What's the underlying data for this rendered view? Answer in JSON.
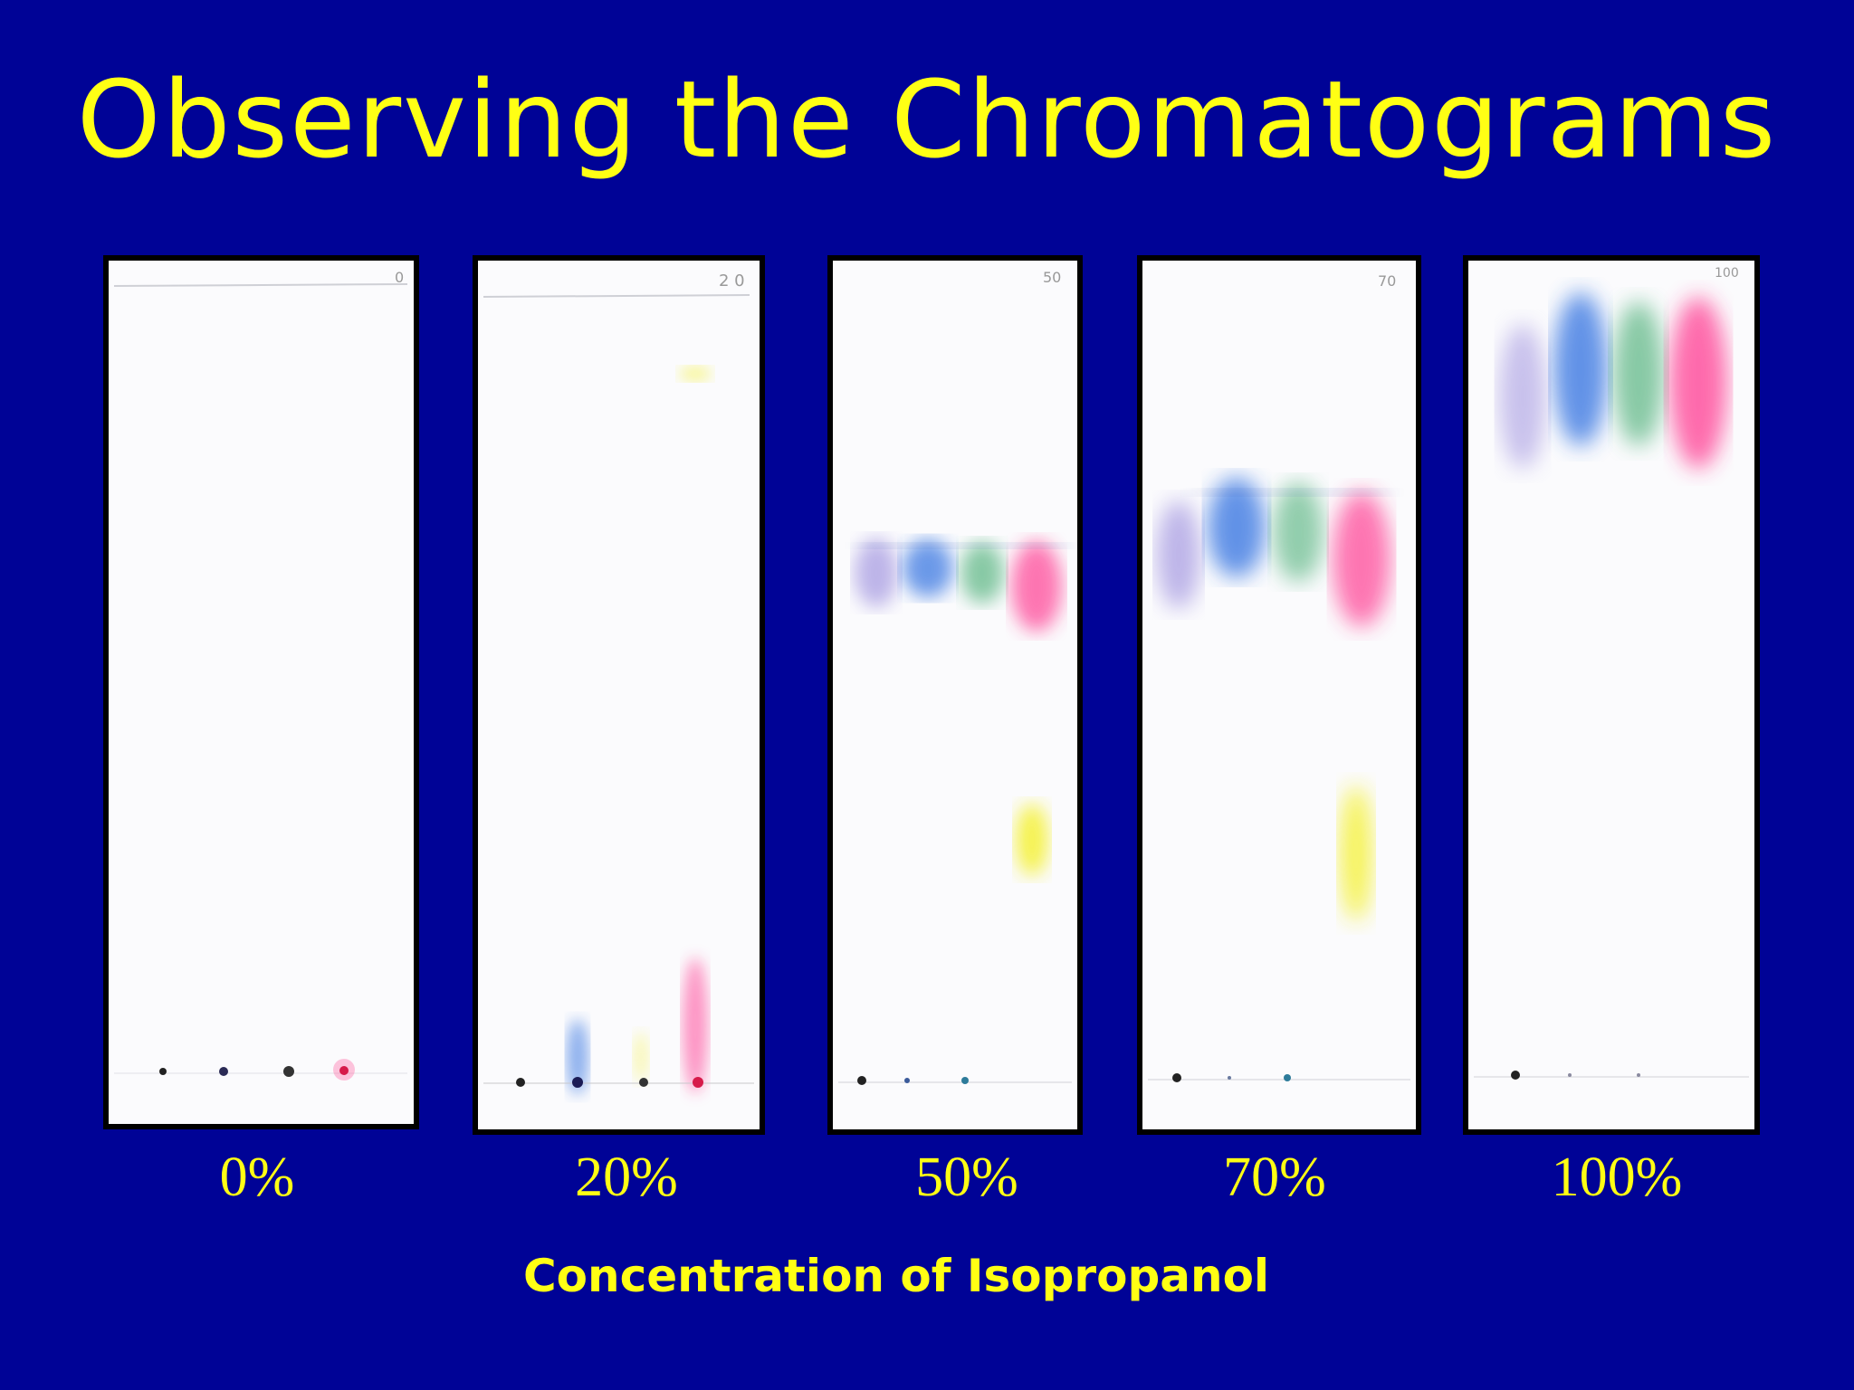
{
  "slide": {
    "title": "Observing the Chromatograms",
    "axis_title": "Concentration of Isopropanol"
  },
  "strips": [
    {
      "label": "0%",
      "mark": "0"
    },
    {
      "label": "20%",
      "mark": "2 0"
    },
    {
      "label": "50%",
      "mark": "50"
    },
    {
      "label": "70%",
      "mark": "70"
    },
    {
      "label": "100%",
      "mark": "100"
    }
  ],
  "colors": {
    "background": "#000396",
    "text": "#FFFF14",
    "ink_black": "#2a2a3a",
    "ink_blue": "#2f6fe0",
    "ink_green": "#3aa86a",
    "ink_pink": "#ff2f8a",
    "ink_purple": "#8a7ad8",
    "ink_yellow": "#f4f020"
  }
}
